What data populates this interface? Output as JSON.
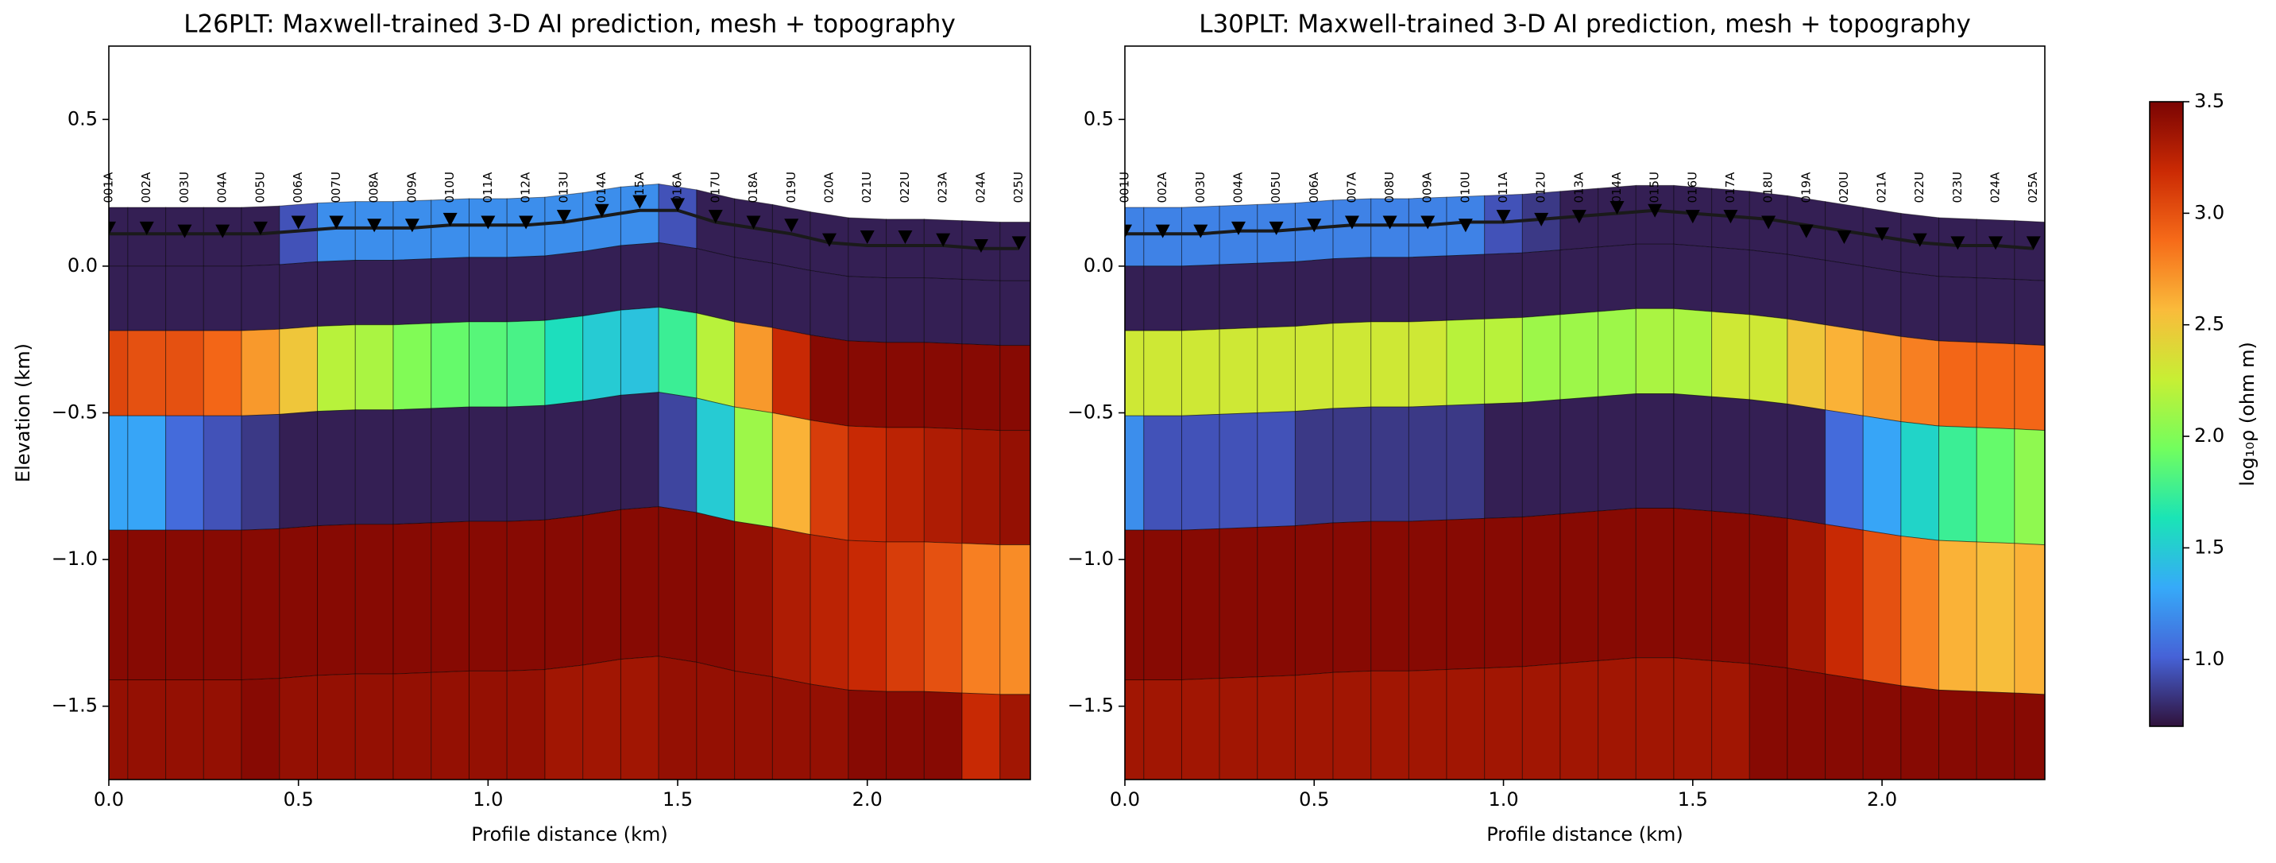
{
  "chart_data": [
    {
      "type": "section",
      "title": "L26PLT: Maxwell-trained 3-D AI prediction, mesh + topography",
      "x_label": "Profile distance (km)",
      "y_label": "Elevation (km)",
      "xlim": [
        0,
        2.43
      ],
      "ylim": [
        -1.75,
        0.75
      ],
      "xticks": [
        {
          "value": 0,
          "label": "0.0"
        },
        {
          "value": 0.5,
          "label": "0.5"
        },
        {
          "value": 1,
          "label": "1.0"
        },
        {
          "value": 1.5,
          "label": "1.5"
        },
        {
          "value": 2,
          "label": "2.0"
        }
      ],
      "yticks": [
        {
          "value": -1.5,
          "label": "−1.5"
        },
        {
          "value": -1,
          "label": "−1.0"
        },
        {
          "value": -0.5,
          "label": "−0.5"
        },
        {
          "value": 0,
          "label": "0.0"
        },
        {
          "value": 0.5,
          "label": "0.5"
        }
      ],
      "stations": [
        "001A",
        "002A",
        "003U",
        "004A",
        "005U",
        "006A",
        "007U",
        "008A",
        "009A",
        "010U",
        "011A",
        "012A",
        "013U",
        "014A",
        "015A",
        "016A",
        "017U",
        "018A",
        "019U",
        "020A",
        "021U",
        "022U",
        "023A",
        "024A",
        "025U"
      ],
      "x": [
        0,
        0.1,
        0.2,
        0.3,
        0.4,
        0.5,
        0.6,
        0.7,
        0.8,
        0.9,
        1.0,
        1.1,
        1.2,
        1.3,
        1.4,
        1.5,
        1.6,
        1.7,
        1.8,
        1.9,
        2.0,
        2.1,
        2.2,
        2.3,
        2.4
      ],
      "topography": [
        0.2,
        0.2,
        0.2,
        0.2,
        0.2,
        0.21,
        0.22,
        0.22,
        0.22,
        0.23,
        0.23,
        0.23,
        0.24,
        0.26,
        0.28,
        0.28,
        0.24,
        0.22,
        0.2,
        0.17,
        0.16,
        0.16,
        0.16,
        0.15,
        0.15
      ],
      "surface_line": [
        0.11,
        0.11,
        0.11,
        0.11,
        0.11,
        0.12,
        0.13,
        0.13,
        0.13,
        0.14,
        0.14,
        0.14,
        0.15,
        0.17,
        0.19,
        0.19,
        0.15,
        0.13,
        0.11,
        0.08,
        0.07,
        0.07,
        0.07,
        0.06,
        0.06
      ],
      "station_elevation": [
        0.13,
        0.13,
        0.12,
        0.12,
        0.13,
        0.15,
        0.15,
        0.14,
        0.14,
        0.16,
        0.15,
        0.15,
        0.17,
        0.19,
        0.22,
        0.21,
        0.17,
        0.15,
        0.14,
        0.09,
        0.1,
        0.1,
        0.09,
        0.07,
        0.08
      ],
      "layer_depths": [
        0,
        0.2,
        0.42,
        0.71,
        1.1,
        1.61
      ],
      "values": [
        [
          0.75,
          0.75,
          0.75,
          0.75,
          0.75,
          0.95,
          1.2,
          1.2,
          1.2,
          1.2,
          1.2,
          1.2,
          1.2,
          1.2,
          1.2,
          0.95,
          0.75,
          0.75,
          0.75,
          0.75,
          0.75,
          0.75,
          0.75,
          0.75,
          0.75
        ],
        [
          0.75,
          0.75,
          0.75,
          0.75,
          0.75,
          0.75,
          0.75,
          0.75,
          0.75,
          0.75,
          0.75,
          0.75,
          0.75,
          0.75,
          0.75,
          0.75,
          0.75,
          0.75,
          0.75,
          0.75,
          0.75,
          0.75,
          0.75,
          0.75,
          0.75
        ],
        [
          3.05,
          3.0,
          3.0,
          2.9,
          2.7,
          2.5,
          2.2,
          2.15,
          2.0,
          1.9,
          1.85,
          1.8,
          1.6,
          1.5,
          1.45,
          1.75,
          2.2,
          2.7,
          3.2,
          3.45,
          3.45,
          3.45,
          3.45,
          3.45,
          3.45
        ],
        [
          1.3,
          1.3,
          1.05,
          0.95,
          0.85,
          0.75,
          0.75,
          0.75,
          0.75,
          0.75,
          0.75,
          0.75,
          0.75,
          0.75,
          0.75,
          0.9,
          1.5,
          2.1,
          2.6,
          3.1,
          3.2,
          3.25,
          3.3,
          3.35,
          3.4
        ],
        [
          3.45,
          3.45,
          3.45,
          3.45,
          3.45,
          3.45,
          3.45,
          3.45,
          3.45,
          3.45,
          3.45,
          3.45,
          3.45,
          3.45,
          3.45,
          3.45,
          3.45,
          3.4,
          3.3,
          3.25,
          3.2,
          3.1,
          3.0,
          2.8,
          2.75
        ],
        [
          3.4,
          3.4,
          3.4,
          3.4,
          3.45,
          3.4,
          3.4,
          3.4,
          3.4,
          3.4,
          3.4,
          3.4,
          3.35,
          3.35,
          3.35,
          3.4,
          3.4,
          3.4,
          3.4,
          3.4,
          3.45,
          3.45,
          3.45,
          3.2,
          3.35
        ]
      ]
    },
    {
      "type": "section",
      "title": "L30PLT: Maxwell-trained 3-D AI prediction, mesh + topography",
      "x_label": "Profile distance (km)",
      "xlim": [
        0,
        2.43
      ],
      "ylim": [
        -1.75,
        0.75
      ],
      "xticks": [
        {
          "value": 0,
          "label": "0.0"
        },
        {
          "value": 0.5,
          "label": "0.5"
        },
        {
          "value": 1,
          "label": "1.0"
        },
        {
          "value": 1.5,
          "label": "1.5"
        },
        {
          "value": 2,
          "label": "2.0"
        }
      ],
      "yticks": [
        {
          "value": -1.5,
          "label": "−1.5"
        },
        {
          "value": -1,
          "label": "−1.0"
        },
        {
          "value": -0.5,
          "label": "−0.5"
        },
        {
          "value": 0,
          "label": "0.0"
        },
        {
          "value": 0.5,
          "label": "0.5"
        }
      ],
      "stations": [
        "001U",
        "002A",
        "003U",
        "004A",
        "005U",
        "006A",
        "007A",
        "008U",
        "009A",
        "010U",
        "011A",
        "012U",
        "013A",
        "014A",
        "015U",
        "016U",
        "017A",
        "018U",
        "019A",
        "020U",
        "021A",
        "022U",
        "023U",
        "024A",
        "025A"
      ],
      "x": [
        0,
        0.1,
        0.2,
        0.3,
        0.4,
        0.5,
        0.6,
        0.7,
        0.8,
        0.9,
        1.0,
        1.1,
        1.2,
        1.3,
        1.4,
        1.5,
        1.6,
        1.7,
        1.8,
        1.9,
        2.0,
        2.1,
        2.2,
        2.3,
        2.4
      ],
      "topography": [
        0.2,
        0.2,
        0.2,
        0.21,
        0.21,
        0.22,
        0.23,
        0.23,
        0.23,
        0.24,
        0.24,
        0.25,
        0.26,
        0.27,
        0.28,
        0.27,
        0.26,
        0.25,
        0.23,
        0.21,
        0.19,
        0.17,
        0.16,
        0.16,
        0.15
      ],
      "surface_line": [
        0.11,
        0.11,
        0.11,
        0.12,
        0.12,
        0.13,
        0.14,
        0.14,
        0.14,
        0.15,
        0.15,
        0.16,
        0.17,
        0.18,
        0.19,
        0.18,
        0.17,
        0.16,
        0.14,
        0.12,
        0.1,
        0.08,
        0.07,
        0.07,
        0.06
      ],
      "station_elevation": [
        0.12,
        0.12,
        0.12,
        0.13,
        0.13,
        0.14,
        0.15,
        0.15,
        0.15,
        0.14,
        0.17,
        0.16,
        0.17,
        0.2,
        0.19,
        0.17,
        0.17,
        0.15,
        0.12,
        0.1,
        0.11,
        0.09,
        0.08,
        0.08,
        0.08
      ],
      "layer_depths": [
        0,
        0.2,
        0.42,
        0.71,
        1.1,
        1.61
      ],
      "values": [
        [
          1.15,
          1.15,
          1.15,
          1.15,
          1.15,
          1.15,
          1.15,
          1.15,
          1.15,
          1.15,
          0.95,
          0.85,
          0.75,
          0.75,
          0.75,
          0.75,
          0.75,
          0.75,
          0.75,
          0.75,
          0.75,
          0.75,
          0.75,
          0.75,
          0.75
        ],
        [
          0.75,
          0.75,
          0.75,
          0.75,
          0.75,
          0.75,
          0.75,
          0.75,
          0.75,
          0.75,
          0.75,
          0.75,
          0.75,
          0.75,
          0.75,
          0.75,
          0.75,
          0.75,
          0.75,
          0.75,
          0.75,
          0.75,
          0.75,
          0.75,
          0.75
        ],
        [
          2.3,
          2.3,
          2.3,
          2.3,
          2.3,
          2.3,
          2.3,
          2.3,
          2.3,
          2.2,
          2.2,
          2.1,
          2.1,
          2.1,
          2.15,
          2.15,
          2.3,
          2.3,
          2.5,
          2.6,
          2.7,
          2.8,
          2.9,
          2.9,
          2.9
        ],
        [
          1.2,
          0.95,
          0.95,
          0.95,
          0.95,
          0.85,
          0.85,
          0.85,
          0.85,
          0.85,
          0.75,
          0.75,
          0.75,
          0.75,
          0.75,
          0.75,
          0.75,
          0.75,
          0.75,
          1.05,
          1.3,
          1.55,
          1.75,
          1.9,
          2.05
        ],
        [
          3.45,
          3.45,
          3.45,
          3.45,
          3.45,
          3.45,
          3.45,
          3.45,
          3.45,
          3.45,
          3.45,
          3.45,
          3.45,
          3.45,
          3.45,
          3.45,
          3.45,
          3.45,
          3.35,
          3.2,
          3.0,
          2.8,
          2.6,
          2.55,
          2.6
        ],
        [
          3.35,
          3.35,
          3.35,
          3.35,
          3.35,
          3.35,
          3.35,
          3.35,
          3.35,
          3.35,
          3.35,
          3.35,
          3.35,
          3.35,
          3.35,
          3.35,
          3.35,
          3.45,
          3.45,
          3.45,
          3.45,
          3.45,
          3.45,
          3.45,
          3.45
        ]
      ]
    },
    {
      "type": "colorbar",
      "label": "log₁₀ρ (ohm m)",
      "ylim": [
        0.7,
        3.5
      ],
      "yticks": [
        {
          "value": 1,
          "label": "1.0"
        },
        {
          "value": 1.5,
          "label": "1.5"
        },
        {
          "value": 2,
          "label": "2.0"
        },
        {
          "value": 2.5,
          "label": "2.5"
        },
        {
          "value": 3,
          "label": "3.0"
        },
        {
          "value": 3.5,
          "label": "3.5"
        }
      ],
      "colormap": [
        "#30123b",
        "#4662d7",
        "#36aaf9",
        "#1ae4b6",
        "#72fe5e",
        "#c7ef34",
        "#fabb3b",
        "#f66b19",
        "#cb2a04",
        "#7a0403"
      ]
    }
  ]
}
